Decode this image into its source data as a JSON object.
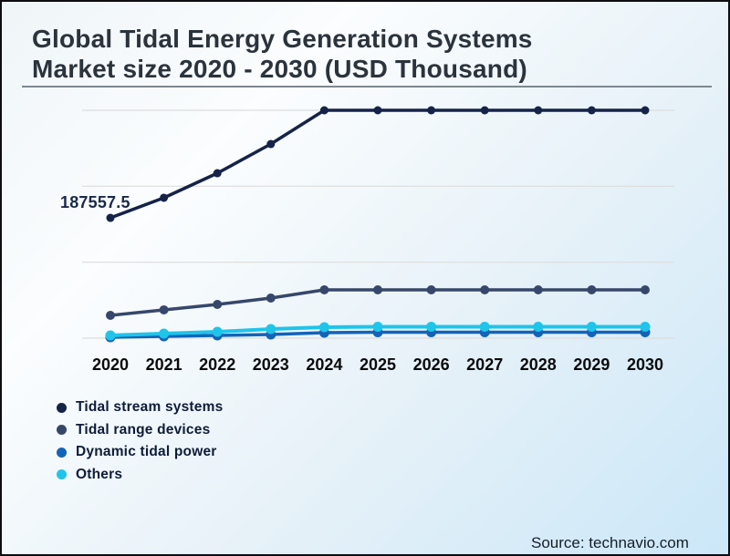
{
  "header": {
    "title_line1": "Global Tidal Energy Generation Systems",
    "title_line2": "Market size 2020 - 2030 (USD Thousand)"
  },
  "chart_data": {
    "type": "line",
    "title": "Global Tidal Energy Generation Systems Market size 2020 - 2030 (USD Thousand)",
    "categories": [
      "2020",
      "2021",
      "2022",
      "2023",
      "2024",
      "2025",
      "2026",
      "2027",
      "2028",
      "2029",
      "2030"
    ],
    "series": [
      {
        "name": "Tidal stream systems",
        "color": "#152349",
        "values": [
          187557.5,
          218900,
          257200,
          302700,
          355300,
          355300,
          355300,
          355300,
          355300,
          355300,
          355300
        ]
      },
      {
        "name": "Tidal range devices",
        "color": "#37476b",
        "values": [
          35500,
          44100,
          52600,
          62500,
          75300,
          75300,
          75300,
          75300,
          75300,
          75300,
          75300
        ]
      },
      {
        "name": "Dynamic tidal power",
        "color": "#1363b8",
        "values": [
          1400,
          2800,
          4300,
          5700,
          8500,
          9200,
          9200,
          9200,
          9200,
          9200,
          9200
        ]
      },
      {
        "name": "Others",
        "color": "#1fc4e9",
        "values": [
          4300,
          7100,
          9900,
          14200,
          17100,
          17800,
          17800,
          17800,
          17800,
          17800,
          17800
        ]
      }
    ],
    "annotation": {
      "text": "187557.5",
      "series": "Tidal stream systems",
      "category": "2020"
    },
    "xlabel": "",
    "ylabel": "",
    "ylim": [
      0,
      355300
    ],
    "gridlines": 4,
    "grid": "horizontal-only",
    "legend_position": "bottom-left"
  },
  "source": {
    "label": "Source: technavio.com"
  },
  "colors": {
    "background_top_left": "#eff5f8",
    "background_bottom_right": "#cbe7f8",
    "frame_border": "#0d0d12",
    "title_text": "#2b333c",
    "divider": "#7d878f",
    "gridline": "#dcdddd",
    "axis_label": "#0b0b0b",
    "annotation_text": "#1b2a4a",
    "legend_text": "#0e1c38",
    "source_text": "#141e28"
  }
}
